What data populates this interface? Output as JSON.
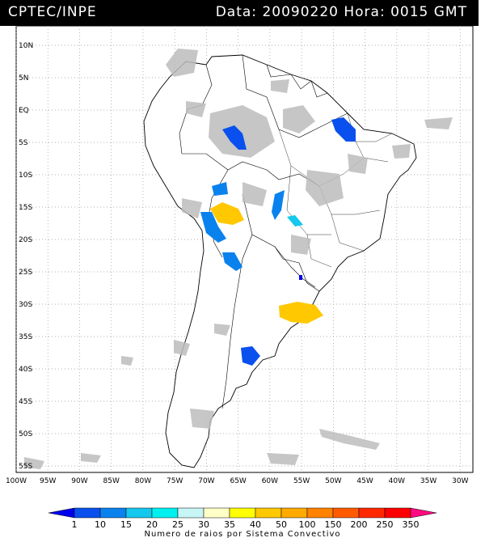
{
  "header": {
    "source": "CPTEC/INPE",
    "datetime": "Data: 20090220 Hora: 0015 GMT"
  },
  "map": {
    "lat_labels": [
      "10N",
      "5N",
      "EQ",
      "5S",
      "10S",
      "15S",
      "20S",
      "25S",
      "30S",
      "35S",
      "40S",
      "45S",
      "50S",
      "55S"
    ],
    "lon_labels": [
      "100W",
      "95W",
      "90W",
      "85W",
      "80W",
      "75W",
      "70W",
      "65W",
      "60W",
      "55W",
      "50W",
      "45W",
      "40W",
      "35W",
      "30W"
    ],
    "lon_range": [
      -100,
      -28
    ],
    "lat_range": [
      -56,
      13
    ]
  },
  "legend": {
    "title": "Numero de raios por Sistema Convectivo",
    "ticks": [
      "1",
      "10",
      "15",
      "20",
      "25",
      "30",
      "35",
      "40",
      "50",
      "100",
      "150",
      "200",
      "250",
      "350"
    ],
    "colors": [
      "#0000ee",
      "#0a50ee",
      "#0a82ee",
      "#14c8ee",
      "#00f0f0",
      "#c8f5f5",
      "#ffffc8",
      "#ffff00",
      "#ffc800",
      "#ffaa00",
      "#ff8200",
      "#ff5a00",
      "#ff2800",
      "#ff0000",
      "#ff0a82"
    ]
  }
}
